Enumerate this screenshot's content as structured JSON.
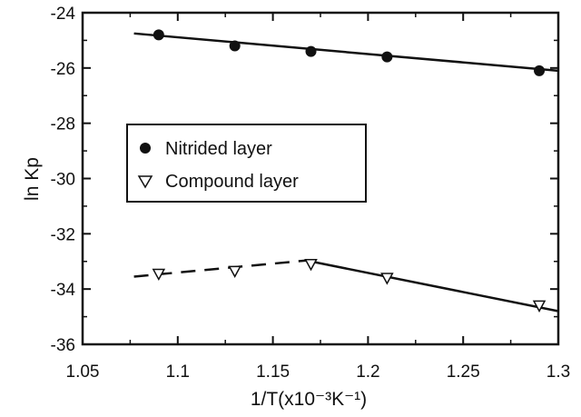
{
  "chart_data": {
    "type": "scatter",
    "xlabel": "1/T(x10⁻³K⁻¹)",
    "ylabel": "ln Kp",
    "xlim": [
      1.05,
      1.3
    ],
    "ylim": [
      -36,
      -24
    ],
    "xticks": [
      "1.05",
      "1.1",
      "1.15",
      "1.2",
      "1.25",
      "1.3"
    ],
    "yticks": [
      "-24",
      "-26",
      "-28",
      "-30",
      "-32",
      "-34",
      "-36"
    ],
    "grid": false,
    "legend_position": "middle-left",
    "series": [
      {
        "name": "Nitrided layer",
        "marker": "filled-circle",
        "x": [
          1.09,
          1.13,
          1.17,
          1.21,
          1.29
        ],
        "y": [
          -24.8,
          -25.2,
          -25.4,
          -25.6,
          -26.1
        ],
        "fit": {
          "style": "solid",
          "x": [
            1.077,
            1.3
          ],
          "y": [
            -24.75,
            -26.1
          ]
        }
      },
      {
        "name": "Compound layer",
        "marker": "open-triangle-down",
        "x": [
          1.09,
          1.13,
          1.17,
          1.21,
          1.29
        ],
        "y": [
          -33.45,
          -33.35,
          -33.1,
          -33.6,
          -34.6
        ],
        "fits": [
          {
            "style": "dashed",
            "x": [
              1.077,
              1.17
            ],
            "y": [
              -33.55,
              -32.95
            ]
          },
          {
            "style": "solid",
            "x": [
              1.17,
              1.3
            ],
            "y": [
              -33.0,
              -34.8
            ]
          }
        ]
      }
    ]
  }
}
